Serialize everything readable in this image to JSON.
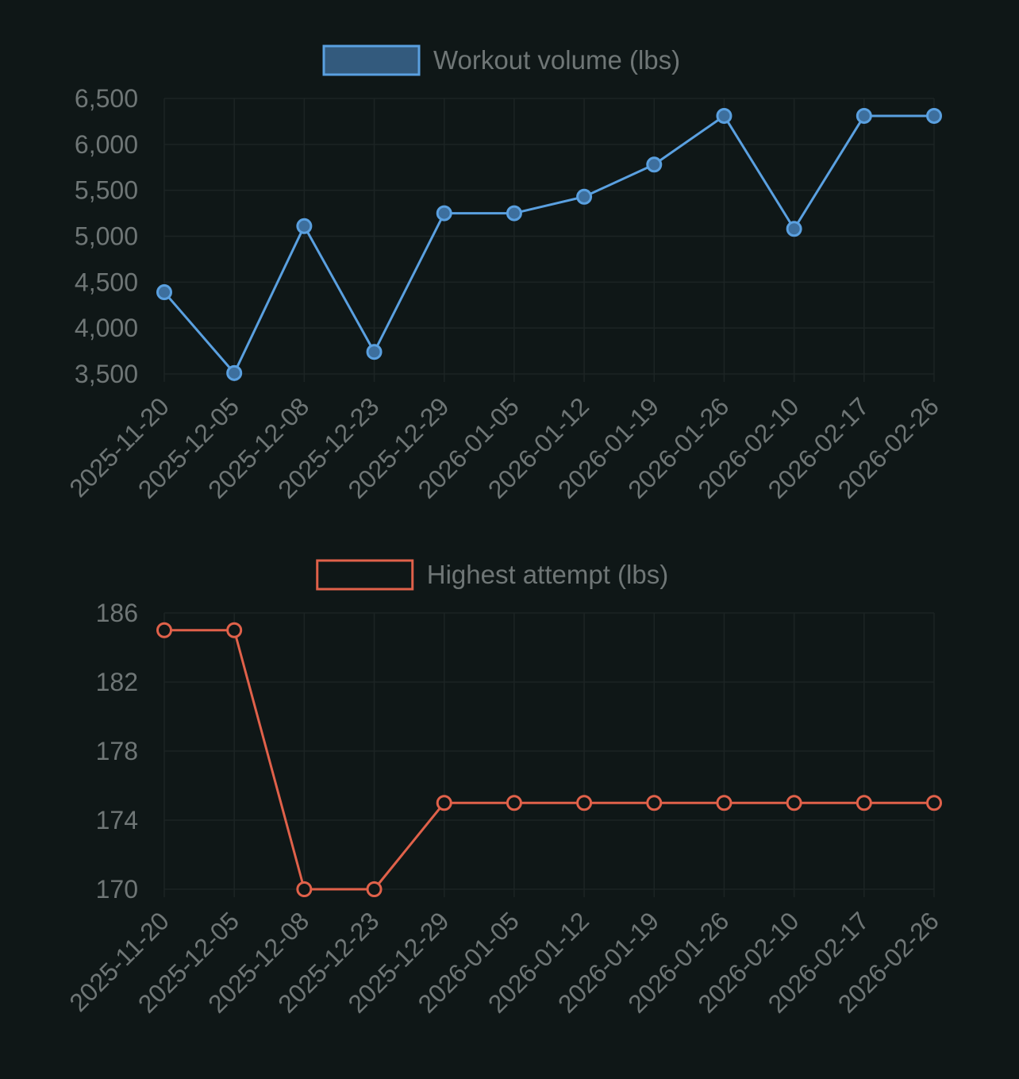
{
  "chart_data": [
    {
      "type": "line",
      "categories": [
        "2025-11-20",
        "2025-12-05",
        "2025-12-08",
        "2025-12-23",
        "2025-12-29",
        "2026-01-05",
        "2026-01-12",
        "2026-01-19",
        "2026-01-26",
        "2026-02-10",
        "2026-02-17",
        "2026-02-26"
      ],
      "series": [
        {
          "name": "Workout volume (lbs)",
          "values": [
            4390,
            3510,
            5110,
            3740,
            5250,
            5250,
            5430,
            5780,
            6310,
            5080,
            6310,
            6310
          ],
          "color": "#5aa0e0",
          "fill_color": "#335a7d",
          "point_fill": "#3d6f9e"
        }
      ],
      "ylim": [
        3500,
        6500
      ],
      "yticks": [
        3500,
        4000,
        4500,
        5000,
        5500,
        6000,
        6500
      ],
      "ytick_labels": [
        "3,500",
        "4,000",
        "4,500",
        "5,000",
        "5,500",
        "6,000",
        "6,500"
      ],
      "grid": true,
      "legend": "top-center"
    },
    {
      "type": "line",
      "categories": [
        "2025-11-20",
        "2025-12-05",
        "2025-12-08",
        "2025-12-23",
        "2025-12-29",
        "2026-01-05",
        "2026-01-12",
        "2026-01-19",
        "2026-01-26",
        "2026-02-10",
        "2026-02-17",
        "2026-02-26"
      ],
      "series": [
        {
          "name": "Highest attempt (lbs)",
          "values": [
            185,
            185,
            170,
            170,
            175,
            175,
            175,
            175,
            175,
            175,
            175,
            175
          ],
          "color": "#e0614a",
          "fill_color": "#0f1717",
          "point_fill": "#0f1717"
        }
      ],
      "ylim": [
        170,
        186
      ],
      "yticks": [
        170,
        174,
        178,
        182,
        186
      ],
      "ytick_labels": [
        "170",
        "174",
        "178",
        "182",
        "186"
      ],
      "grid": true,
      "legend": "top-center"
    }
  ],
  "colors": {
    "background": "#0f1717",
    "text": "#6f7676",
    "grid": "#1c2424"
  }
}
